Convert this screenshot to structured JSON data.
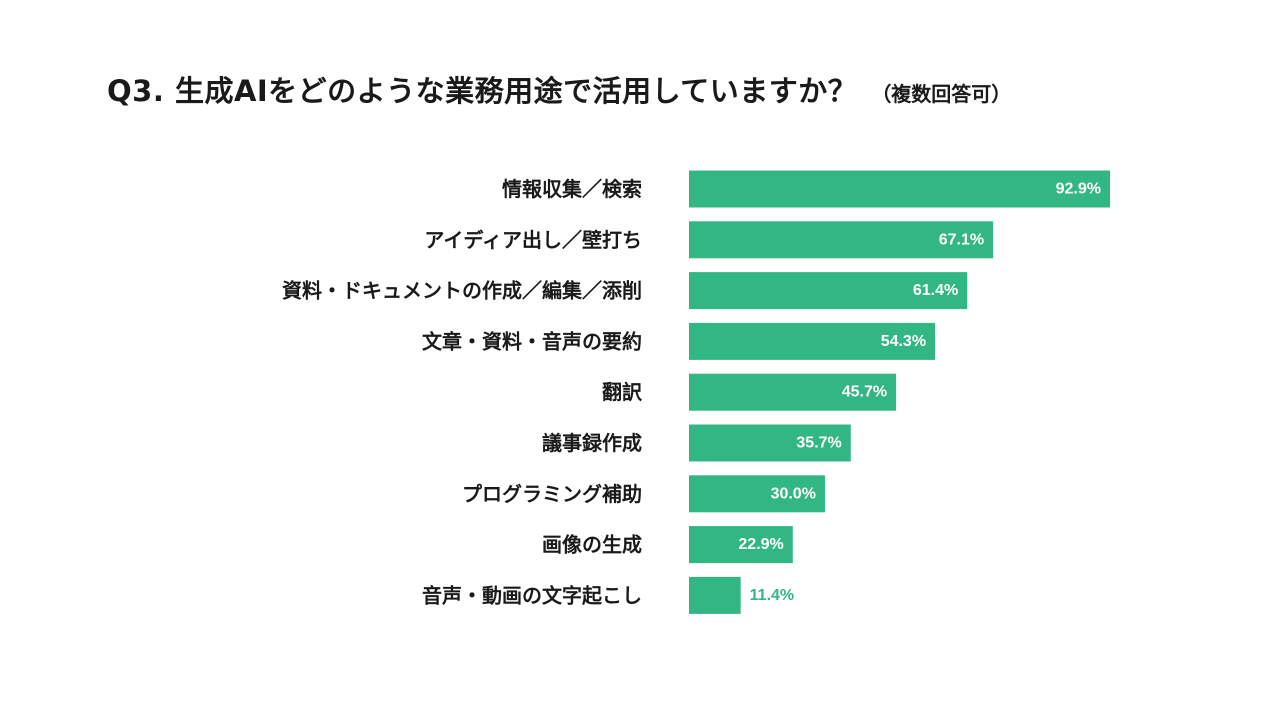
{
  "title": "Q3. 生成AIをどのような業務用途で活用していますか？",
  "subtitle": "（複数回答可）",
  "colors": {
    "bar": "#32b784",
    "label_inside": "#ffffff",
    "label_outside": "#32b784",
    "text": "#1a1a1a"
  },
  "chart_data": {
    "type": "bar",
    "orientation": "horizontal",
    "title": "Q3. 生成AIをどのような業務用途で活用していますか？",
    "subtitle": "（複数回答可）",
    "categories": [
      "情報収集／検索",
      "アイディア出し／壁打ち",
      "資料・ドキュメントの作成／編集／添削",
      "文章・資料・音声の要約",
      "翻訳",
      "議事録作成",
      "プログラミング補助",
      "画像の生成",
      "音声・動画の文字起こし"
    ],
    "values": [
      92.9,
      67.1,
      61.4,
      54.3,
      45.7,
      35.7,
      30.0,
      22.9,
      11.4
    ],
    "value_labels": [
      "92.9%",
      "67.1%",
      "61.4%",
      "54.3%",
      "45.7%",
      "35.7%",
      "30.0%",
      "22.9%",
      "11.4%"
    ],
    "unit": "%",
    "xlim": [
      0,
      100
    ],
    "grid": false,
    "legend": "none"
  }
}
